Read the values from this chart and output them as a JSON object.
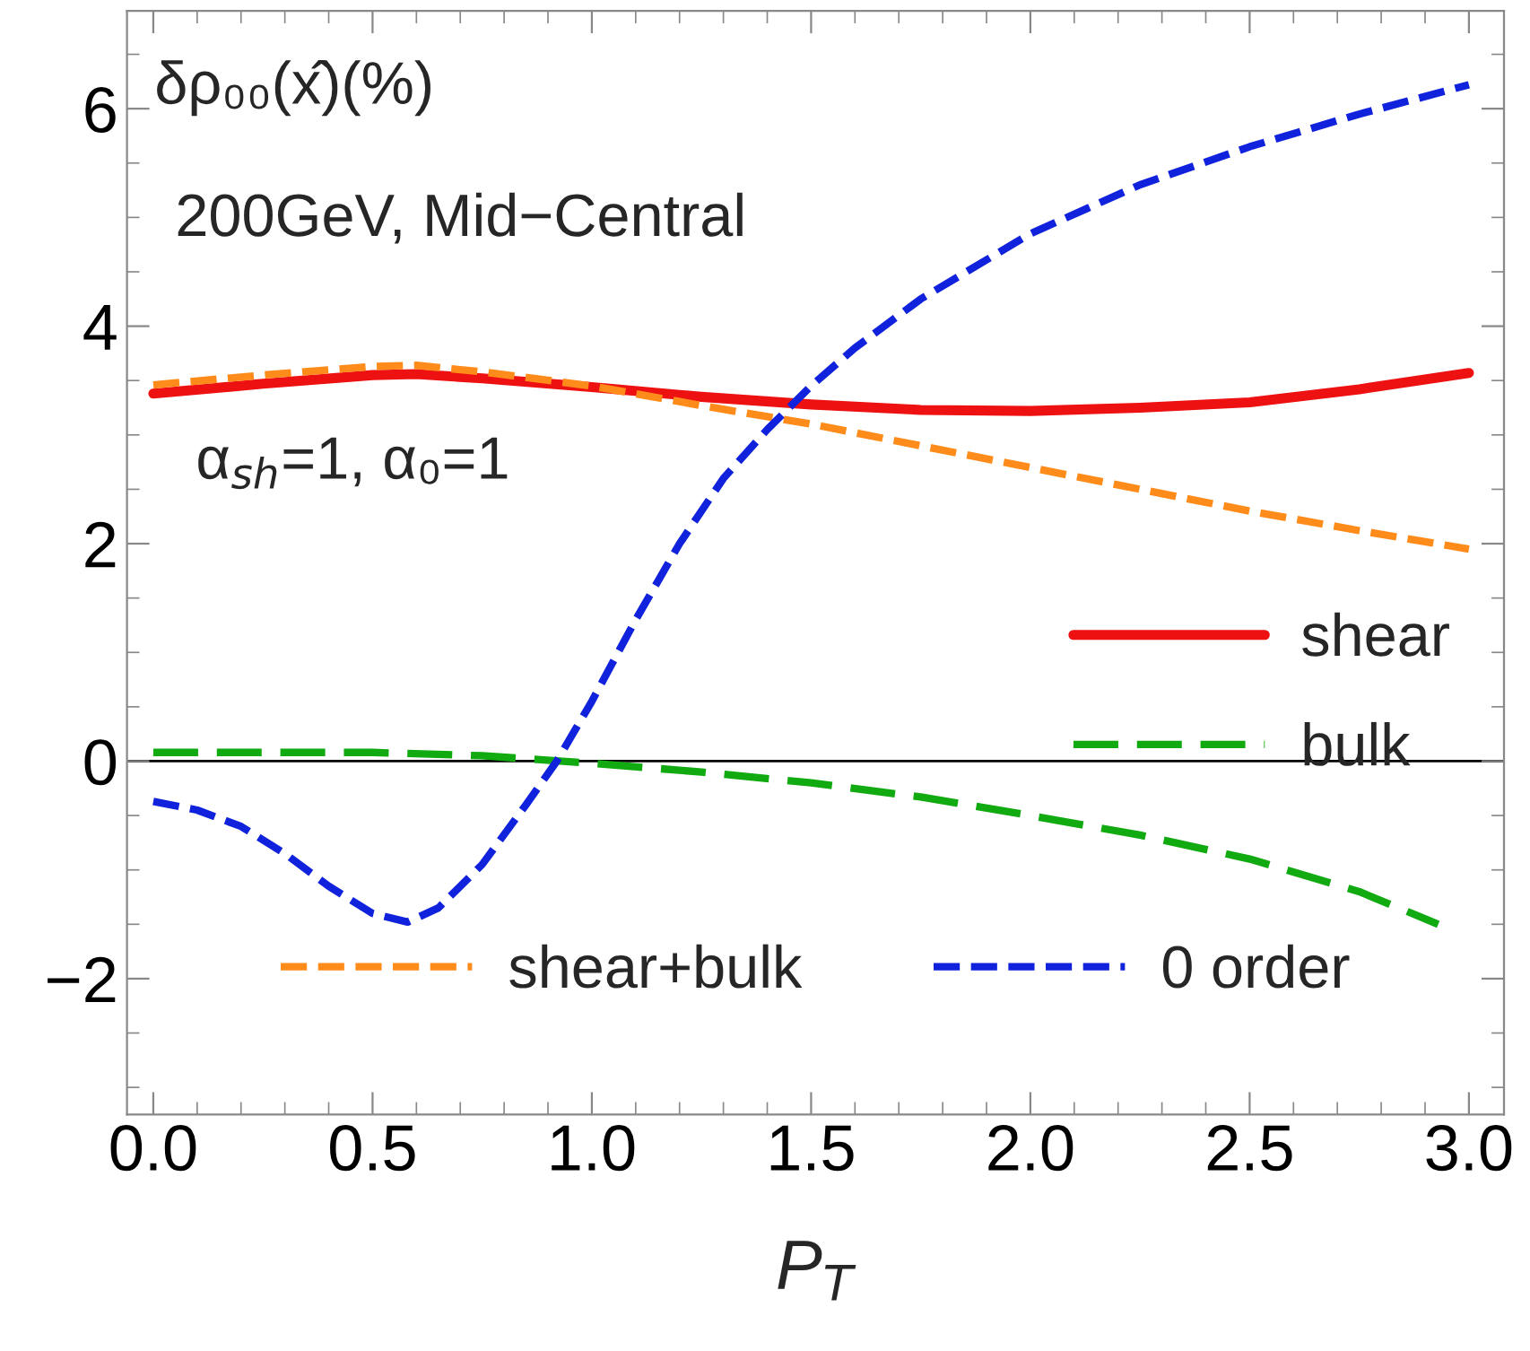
{
  "chart_data": {
    "type": "line",
    "xlabel": "P$_{T}$",
    "annotations": [
      "δρ₀₀(x̂)(%)",
      "200GeV, Mid−Central",
      "α$_{sh}$=1, α₀=1"
    ],
    "xlim": [
      -0.06,
      3.08
    ],
    "ylim": [
      -3.25,
      6.9
    ],
    "xticks": [
      {
        "value": 0,
        "label": "0.0"
      },
      0.5,
      {
        "value": 1,
        "label": "1.0"
      },
      1.5,
      {
        "value": 2,
        "label": "2.0"
      },
      2.5,
      {
        "value": 3,
        "label": "3.0"
      }
    ],
    "yticks": [
      -2,
      0,
      2,
      4,
      6
    ],
    "ref_lines": [
      {
        "axis": "y",
        "value": 0,
        "color": "#000000",
        "line_style": "solid"
      }
    ],
    "grid": false,
    "legend": "right",
    "series": [
      {
        "name": "shear",
        "color": "#ee1111",
        "line_style": "solid",
        "x": [
          0,
          0.25,
          0.5,
          0.6,
          0.75,
          1.0,
          1.25,
          1.5,
          1.75,
          2.0,
          2.25,
          2.5,
          2.75,
          3.0
        ],
        "values": [
          3.38,
          3.47,
          3.55,
          3.56,
          3.52,
          3.44,
          3.35,
          3.28,
          3.23,
          3.22,
          3.25,
          3.3,
          3.42,
          3.57
        ]
      },
      {
        "name": "bulk",
        "color": "#11aa11",
        "line_style": "dashed",
        "x": [
          0,
          0.25,
          0.5,
          0.75,
          1.0,
          1.25,
          1.5,
          1.75,
          2.0,
          2.25,
          2.5,
          2.75,
          2.93
        ],
        "values": [
          0.08,
          0.08,
          0.08,
          0.05,
          -0.02,
          -0.1,
          -0.2,
          -0.33,
          -0.5,
          -0.68,
          -0.9,
          -1.2,
          -1.5
        ]
      },
      {
        "name": "shear+bulk",
        "color": "#ff8c1a",
        "line_style": "dashed",
        "x": [
          0,
          0.25,
          0.5,
          0.6,
          0.75,
          1.0,
          1.25,
          1.5,
          1.75,
          2.0,
          2.25,
          2.5,
          2.75,
          3.0
        ],
        "values": [
          3.46,
          3.55,
          3.63,
          3.64,
          3.58,
          3.45,
          3.27,
          3.1,
          2.9,
          2.7,
          2.5,
          2.3,
          2.12,
          1.95
        ]
      },
      {
        "name": "0 order",
        "color": "#1122dd",
        "line_style": "dashed",
        "x": [
          0,
          0.1,
          0.2,
          0.3,
          0.4,
          0.5,
          0.58,
          0.65,
          0.75,
          0.85,
          0.92,
          1.0,
          1.1,
          1.2,
          1.3,
          1.4,
          1.5,
          1.6,
          1.75,
          2.0,
          2.25,
          2.5,
          2.75,
          3.0
        ],
        "values": [
          -0.37,
          -0.45,
          -0.6,
          -0.85,
          -1.15,
          -1.4,
          -1.48,
          -1.35,
          -0.95,
          -0.4,
          0.0,
          0.55,
          1.3,
          2.0,
          2.6,
          3.05,
          3.45,
          3.8,
          4.25,
          4.85,
          5.3,
          5.65,
          5.95,
          6.22
        ]
      }
    ]
  }
}
